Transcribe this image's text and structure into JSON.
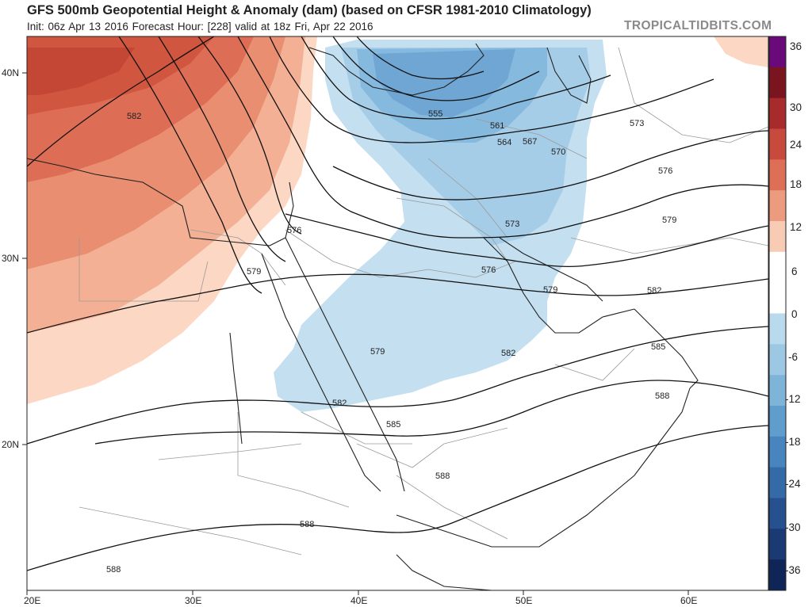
{
  "header": {
    "title": "GFS 500mb Geopotential Height & Anomaly (dam) (based on CFSR 1981-2010 Climatology)",
    "subtitle": "Init: 06z Apr 13 2016   Forecast Hour: [228]   valid at 18z Fri, Apr 22 2016",
    "brand": "TROPICALTIDBITS.COM"
  },
  "map": {
    "lat_ticks": [
      "40N",
      "30N",
      "20N"
    ],
    "lon_ticks": [
      "20E",
      "30E",
      "40E",
      "50E",
      "60E"
    ],
    "contour_labels": [
      "582",
      "555",
      "561",
      "564",
      "567",
      "570",
      "573",
      "576",
      "579",
      "576",
      "573",
      "576",
      "579",
      "582",
      "579",
      "582",
      "585",
      "588",
      "582",
      "585",
      "588",
      "588",
      "588",
      "573"
    ]
  },
  "colorbar": {
    "labels": [
      "36",
      "30",
      "24",
      "18",
      "12",
      "6",
      "0",
      "-6",
      "-12",
      "-18",
      "-24",
      "-30",
      "-36"
    ],
    "colors": [
      "#6a0a7a",
      "#7a1520",
      "#a82b2b",
      "#c84a3c",
      "#dc6f55",
      "#ec9b7e",
      "#f8cbb4",
      "#ffffff",
      "#ffffff",
      "#b9d9ec",
      "#9cc8e4",
      "#7fb4d9",
      "#5f9dcc",
      "#4884bd",
      "#356aa8",
      "#26508e",
      "#1a3a74",
      "#0f2558"
    ]
  }
}
